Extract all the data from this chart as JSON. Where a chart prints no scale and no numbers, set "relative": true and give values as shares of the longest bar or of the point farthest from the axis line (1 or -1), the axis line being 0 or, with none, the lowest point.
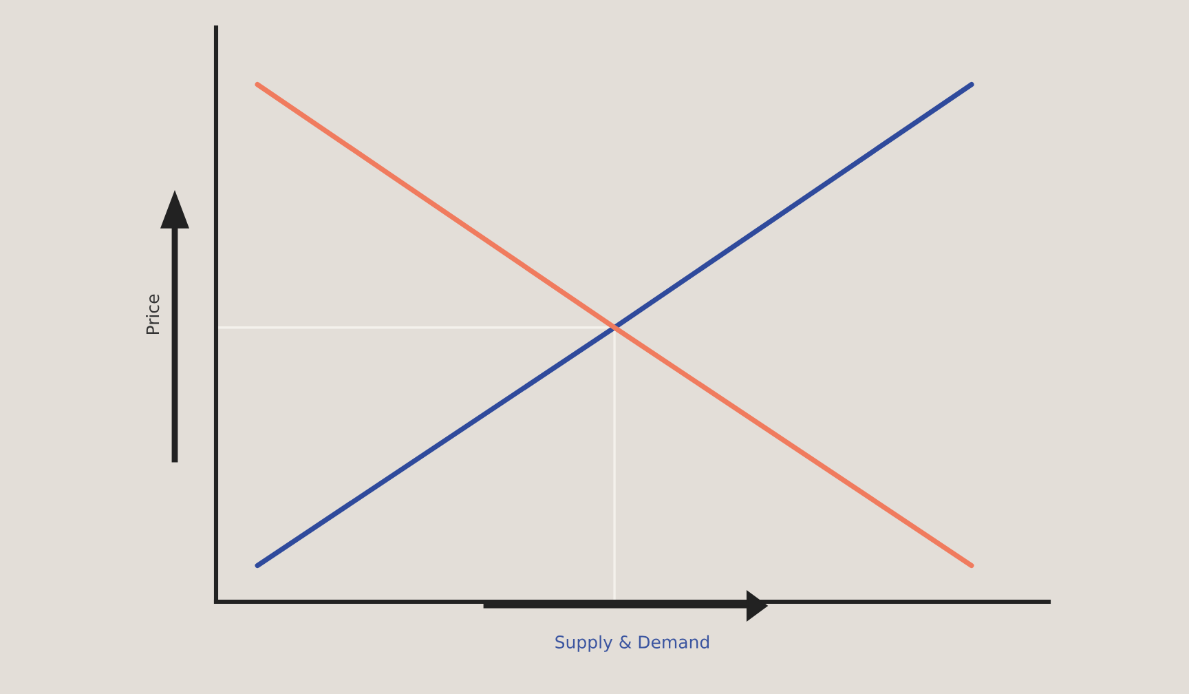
{
  "chart_data": {
    "type": "line",
    "relative": true,
    "xlabel": "Supply & Demand",
    "ylabel": "Price",
    "categories": [
      null,
      null,
      null
    ],
    "series": [
      {
        "color": "#2f4a9c",
        "values": [
          0.07,
          0.53,
          1
        ]
      },
      {
        "color": "#f07b5e",
        "values": [
          1,
          0.53,
          0.07
        ]
      }
    ],
    "ref_lines": [
      {
        "axis": "y",
        "value": 0.53,
        "color": "#f4f1ec"
      }
    ],
    "grid": false,
    "marker": "none",
    "line_style": "solid"
  }
}
